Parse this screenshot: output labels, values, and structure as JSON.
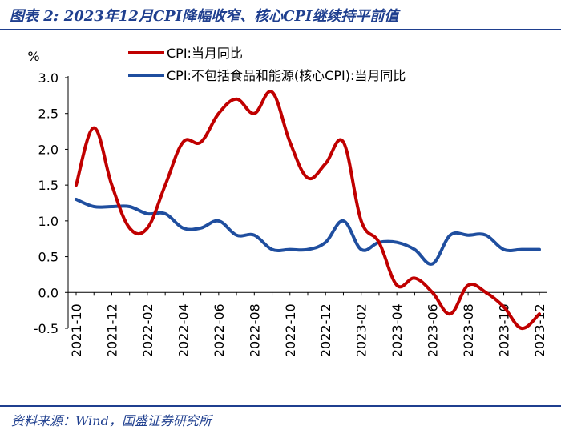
{
  "header": {
    "title": "图表 2: 2023年12月CPI降幅收窄、核心CPI继续持平前值"
  },
  "footer": {
    "source": "资料来源：Wind，国盛证券研究所"
  },
  "colors": {
    "accent": "#1f3f8f",
    "series_red": "#c00000",
    "series_blue": "#1f4e9f"
  },
  "chart_data": {
    "type": "line",
    "title": "2023年12月CPI降幅收窄、核心CPI继续持平前值",
    "ylabel": "%",
    "xlabel": "",
    "ylim": [
      -0.5,
      3.0
    ],
    "yticks": [
      "3.0",
      "2.5",
      "2.0",
      "1.5",
      "1.0",
      "0.5",
      "0.0",
      "-0.5"
    ],
    "ytick_values": [
      3.0,
      2.5,
      2.0,
      1.5,
      1.0,
      0.5,
      0.0,
      -0.5
    ],
    "x": [
      "2021-10",
      "2021-11",
      "2021-12",
      "2022-01",
      "2022-02",
      "2022-03",
      "2022-04",
      "2022-05",
      "2022-06",
      "2022-07",
      "2022-08",
      "2022-09",
      "2022-10",
      "2022-11",
      "2022-12",
      "2023-01",
      "2023-02",
      "2023-03",
      "2023-04",
      "2023-05",
      "2023-06",
      "2023-07",
      "2023-08",
      "2023-09",
      "2023-10",
      "2023-11",
      "2023-12"
    ],
    "xtick_labels": [
      "2021-10",
      "2021-12",
      "2022-02",
      "2022-04",
      "2022-06",
      "2022-08",
      "2022-10",
      "2022-12",
      "2023-02",
      "2023-04",
      "2023-06",
      "2023-08",
      "2023-10",
      "2023-12"
    ],
    "legend_position": "top",
    "series": [
      {
        "name": "CPI:当月同比",
        "color": "#c00000",
        "values": [
          1.5,
          2.3,
          1.5,
          0.9,
          0.9,
          1.5,
          2.1,
          2.1,
          2.5,
          2.7,
          2.5,
          2.8,
          2.1,
          1.6,
          1.8,
          2.1,
          1.0,
          0.7,
          0.1,
          0.2,
          0.0,
          -0.3,
          0.1,
          0.0,
          -0.2,
          -0.5,
          -0.3
        ]
      },
      {
        "name": "CPI:不包括食品和能源(核心CPI):当月同比",
        "color": "#1f4e9f",
        "values": [
          1.3,
          1.2,
          1.2,
          1.2,
          1.1,
          1.1,
          0.9,
          0.9,
          1.0,
          0.8,
          0.8,
          0.6,
          0.6,
          0.6,
          0.7,
          1.0,
          0.6,
          0.7,
          0.7,
          0.6,
          0.4,
          0.8,
          0.8,
          0.8,
          0.6,
          0.6,
          0.6
        ]
      }
    ]
  }
}
